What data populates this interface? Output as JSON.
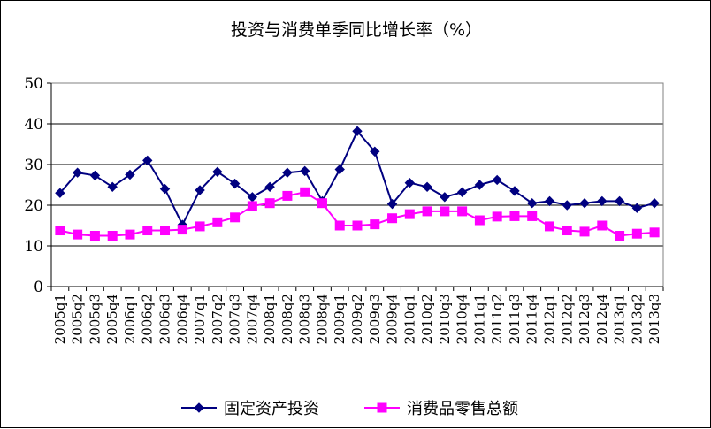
{
  "chart_data": {
    "type": "line",
    "title": "投资与消费单季同比增长率（%）",
    "xlabel": "",
    "ylabel": "",
    "ylim": [
      0,
      50
    ],
    "yticks": [
      0,
      10,
      20,
      30,
      40,
      50
    ],
    "grid": true,
    "legend_position": "bottom",
    "categories": [
      "2005q1",
      "2005q2",
      "2005q3",
      "2005q4",
      "2006q1",
      "2006q2",
      "2006q3",
      "2006q4",
      "2007q1",
      "2007q2",
      "2007q3",
      "2007q4",
      "2008q1",
      "2008q2",
      "2008q3",
      "2008q4",
      "2009q1",
      "2009q2",
      "2009q3",
      "2009q4",
      "2010q1",
      "2010q2",
      "2010q3",
      "2010q4",
      "2011q1",
      "2011q2",
      "2011q3",
      "2011q4",
      "2012q1",
      "2012q2",
      "2012q3",
      "2012q4",
      "2013q1",
      "2013q2",
      "2013q3"
    ],
    "series": [
      {
        "name": "固定资产投资",
        "color": "#000080",
        "marker": "diamond",
        "values": [
          23.0,
          28.0,
          27.3,
          24.5,
          27.5,
          31.0,
          24.0,
          15.2,
          23.7,
          28.2,
          25.3,
          22.0,
          24.5,
          28.0,
          28.4,
          21.0,
          28.8,
          38.2,
          33.2,
          20.3,
          25.5,
          24.5,
          22.0,
          23.2,
          25.0,
          26.2,
          23.5,
          20.5,
          21.0,
          20.0,
          20.5,
          21.0,
          21.0,
          19.3,
          20.5
        ]
      },
      {
        "name": "消费品零售总额",
        "color": "#ff00ff",
        "marker": "square",
        "values": [
          13.8,
          12.8,
          12.5,
          12.5,
          12.8,
          13.8,
          13.8,
          14.0,
          14.8,
          15.8,
          17.0,
          19.8,
          20.5,
          22.3,
          23.2,
          20.5,
          15.0,
          15.0,
          15.3,
          16.8,
          17.8,
          18.5,
          18.5,
          18.5,
          16.3,
          17.2,
          17.3,
          17.3,
          14.8,
          13.8,
          13.5,
          15.0,
          12.5,
          13.0,
          13.3
        ]
      }
    ]
  }
}
